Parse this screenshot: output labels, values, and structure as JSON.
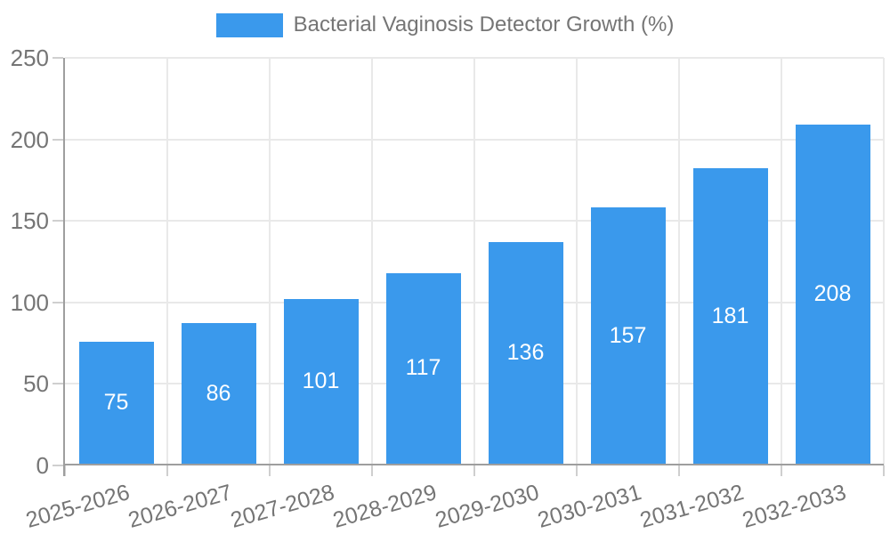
{
  "legend": {
    "label": "Bacterial Vaginosis Detector Growth (%)",
    "swatch_color": "#3a99ec"
  },
  "chart_data": {
    "type": "bar",
    "title": "Bacterial Vaginosis Detector Growth (%)",
    "categories": [
      "2025-2026",
      "2026-2027",
      "2027-2028",
      "2028-2029",
      "2029-2030",
      "2030-2031",
      "2031-2032",
      "2032-2033"
    ],
    "values": [
      75,
      86,
      101,
      117,
      136,
      157,
      181,
      208
    ],
    "xlabel": "",
    "ylabel": "",
    "ylim": [
      0,
      250
    ],
    "yticks": [
      0,
      50,
      100,
      150,
      200,
      250
    ],
    "grid": true,
    "legend_position": "top-center",
    "bar_color": "#3a99ec",
    "bar_value_label_color": "#ffffff",
    "grid_color": "#e9e9e9",
    "axis_color": "#9e9e9e",
    "tick_color": "#cfcfcf",
    "tick_text_color": "#757575",
    "x_label_rotation_deg": -16
  }
}
